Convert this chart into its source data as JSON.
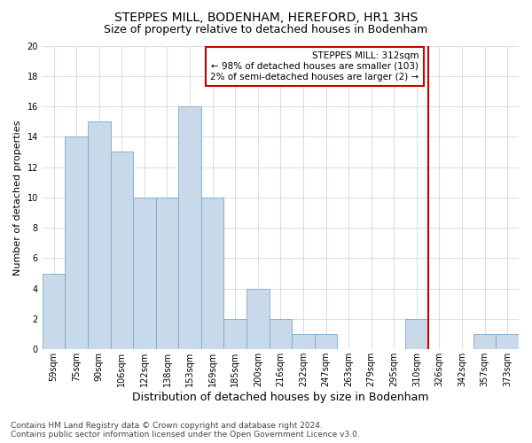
{
  "title": "STEPPES MILL, BODENHAM, HEREFORD, HR1 3HS",
  "subtitle": "Size of property relative to detached houses in Bodenham",
  "xlabel": "Distribution of detached houses by size in Bodenham",
  "ylabel": "Number of detached properties",
  "categories": [
    "59sqm",
    "75sqm",
    "90sqm",
    "106sqm",
    "122sqm",
    "138sqm",
    "153sqm",
    "169sqm",
    "185sqm",
    "200sqm",
    "216sqm",
    "232sqm",
    "247sqm",
    "263sqm",
    "279sqm",
    "295sqm",
    "310sqm",
    "326sqm",
    "342sqm",
    "357sqm",
    "373sqm"
  ],
  "values": [
    5,
    14,
    15,
    13,
    10,
    10,
    16,
    10,
    2,
    4,
    2,
    1,
    1,
    0,
    0,
    0,
    2,
    0,
    0,
    1,
    1
  ],
  "bar_color": "#c8daea",
  "bar_edge_color": "#7aaac8",
  "grid_color": "#d0d8e8",
  "vline_color": "#cc0000",
  "vline_x": 16.5,
  "annotation_text": "STEPPES MILL: 312sqm\n← 98% of detached houses are smaller (103)\n2% of semi-detached houses are larger (2) →",
  "annotation_box_color": "#ffffff",
  "annotation_box_edge": "#cc0000",
  "ylim": [
    0,
    20
  ],
  "yticks": [
    0,
    2,
    4,
    6,
    8,
    10,
    12,
    14,
    16,
    18,
    20
  ],
  "footer": "Contains HM Land Registry data © Crown copyright and database right 2024.\nContains public sector information licensed under the Open Government Licence v3.0.",
  "title_fontsize": 10,
  "subtitle_fontsize": 9,
  "xlabel_fontsize": 9,
  "ylabel_fontsize": 8,
  "tick_fontsize": 7,
  "annotation_fontsize": 7.5,
  "footer_fontsize": 6.5
}
